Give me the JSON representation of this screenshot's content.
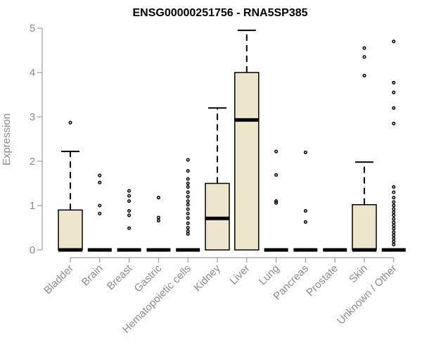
{
  "chart_data": {
    "type": "boxplot",
    "title": "ENSG00000251756 - RNA5SP385",
    "xlabel": "",
    "ylabel": "Expression",
    "ylim": [
      0,
      5
    ],
    "yticks": [
      0,
      1,
      2,
      3,
      4,
      5
    ],
    "box_fill": "#ede6cc",
    "categories": [
      "Bladder",
      "Brain",
      "Breast",
      "Gastric",
      "Hematopoietic cells",
      "Kidney",
      "Liver",
      "Lung",
      "Pancreas",
      "Prostate",
      "Skin",
      "Unknown / Other"
    ],
    "boxes": [
      {
        "category": "Bladder",
        "min": 0,
        "q1": 0,
        "median": 0,
        "q3": 0.9,
        "max": 2.22,
        "outliers": [
          2.87
        ]
      },
      {
        "category": "Brain",
        "min": 0,
        "q1": 0,
        "median": 0,
        "q3": 0,
        "max": 0,
        "outliers": [
          1.68,
          1.52,
          1.0,
          0.82
        ]
      },
      {
        "category": "Breast",
        "min": 0,
        "q1": 0,
        "median": 0,
        "q3": 0,
        "max": 0,
        "outliers": [
          1.33,
          1.22,
          1.1,
          0.88,
          0.78,
          0.49
        ]
      },
      {
        "category": "Gastric",
        "min": 0,
        "q1": 0,
        "median": 0,
        "q3": 0,
        "max": 0,
        "outliers": [
          1.18,
          0.73,
          0.66
        ]
      },
      {
        "category": "Hematopoietic cells",
        "min": 0,
        "q1": 0,
        "median": 0,
        "q3": 0,
        "max": 0,
        "outliers": [
          2.03,
          1.78,
          1.6,
          1.5,
          1.42,
          1.3,
          1.2,
          1.1,
          1.02,
          0.92,
          0.82,
          0.72,
          0.6,
          0.5,
          0.42,
          0.36
        ]
      },
      {
        "category": "Kidney",
        "min": 0,
        "q1": 0,
        "median": 0.71,
        "q3": 1.5,
        "max": 3.2,
        "outliers": []
      },
      {
        "category": "Liver",
        "min": 0,
        "q1": 0,
        "median": 2.93,
        "q3": 4.0,
        "max": 4.95,
        "outliers": []
      },
      {
        "category": "Lung",
        "min": 0,
        "q1": 0,
        "median": 0,
        "q3": 0,
        "max": 0,
        "outliers": [
          2.22,
          1.69,
          1.1,
          1.06
        ]
      },
      {
        "category": "Pancreas",
        "min": 0,
        "q1": 0,
        "median": 0,
        "q3": 0,
        "max": 0,
        "outliers": [
          2.2,
          0.88,
          0.63
        ]
      },
      {
        "category": "Prostate",
        "min": 0,
        "q1": 0,
        "median": 0,
        "q3": 0,
        "max": 0,
        "outliers": []
      },
      {
        "category": "Skin",
        "min": 0,
        "q1": 0,
        "median": 0,
        "q3": 1.02,
        "max": 1.98,
        "outliers": [
          4.55,
          4.35,
          3.93
        ]
      },
      {
        "category": "Unknown / Other",
        "min": 0,
        "q1": 0,
        "median": 0,
        "q3": 0,
        "max": 0,
        "outliers": [
          4.7,
          3.77,
          3.55,
          3.2,
          2.85,
          1.42,
          1.3,
          1.18,
          1.08,
          1.0,
          0.92,
          0.85,
          0.78,
          0.7,
          0.62,
          0.55,
          0.48,
          0.4,
          0.33,
          0.26,
          0.19,
          0.12
        ]
      }
    ]
  }
}
